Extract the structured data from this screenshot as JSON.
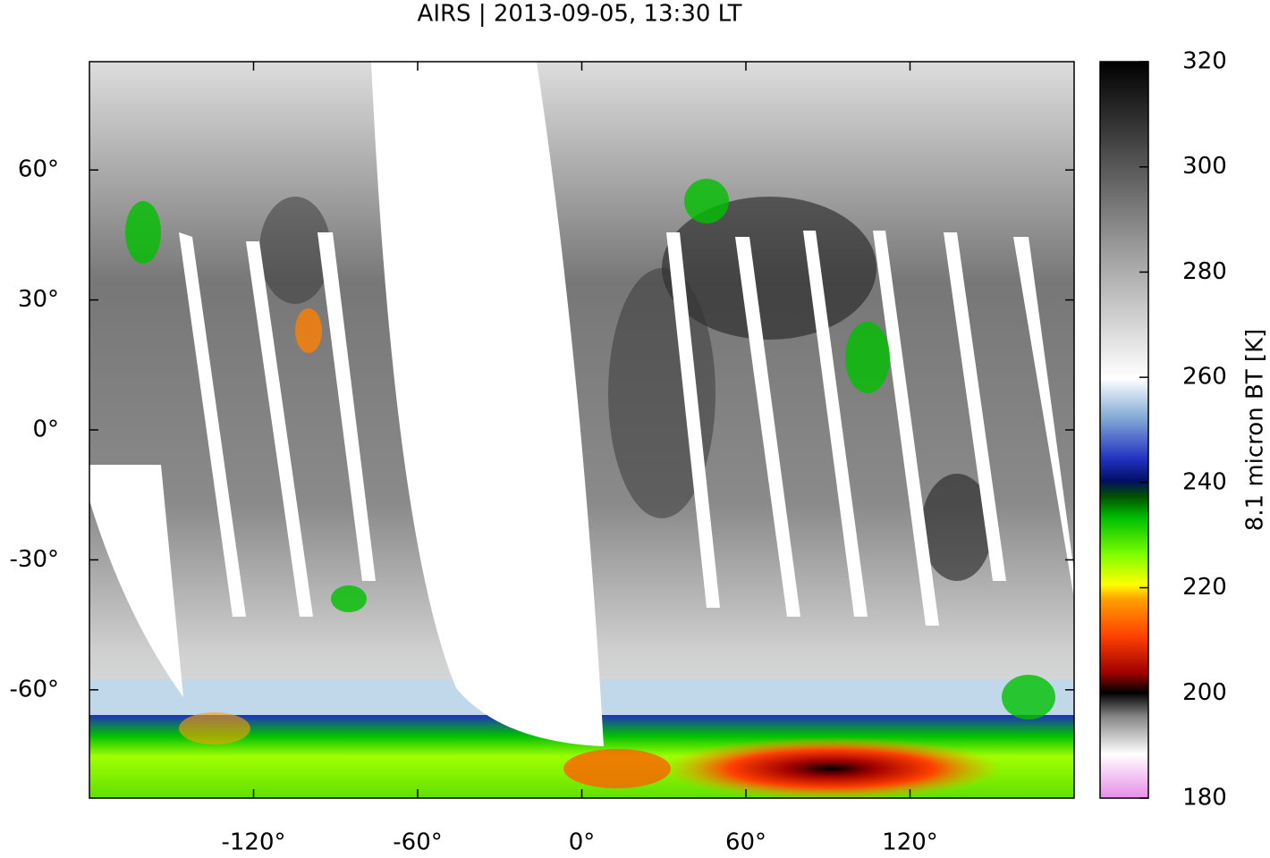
{
  "chart_data": {
    "type": "map",
    "title": "AIRS | 2013-09-05, 13:30 LT",
    "xlim": [
      -180,
      180
    ],
    "ylim": [
      -85,
      85
    ],
    "xticks": [
      {
        "value": -120,
        "label": "-120°"
      },
      {
        "value": -60,
        "label": "-60°"
      },
      {
        "value": 0,
        "label": "0°"
      },
      {
        "value": 60,
        "label": "60°"
      },
      {
        "value": 120,
        "label": "120°"
      }
    ],
    "yticks": [
      {
        "value": -60,
        "label": "-60°"
      },
      {
        "value": -30,
        "label": "-30°"
      },
      {
        "value": 0,
        "label": "0°"
      },
      {
        "value": 30,
        "label": "30°"
      },
      {
        "value": 60,
        "label": "60°"
      }
    ],
    "colorbar": {
      "label": "8.1 micron BT [K]",
      "lim": [
        180,
        320
      ],
      "ticks": [
        180,
        200,
        220,
        240,
        260,
        280,
        300,
        320
      ]
    }
  }
}
